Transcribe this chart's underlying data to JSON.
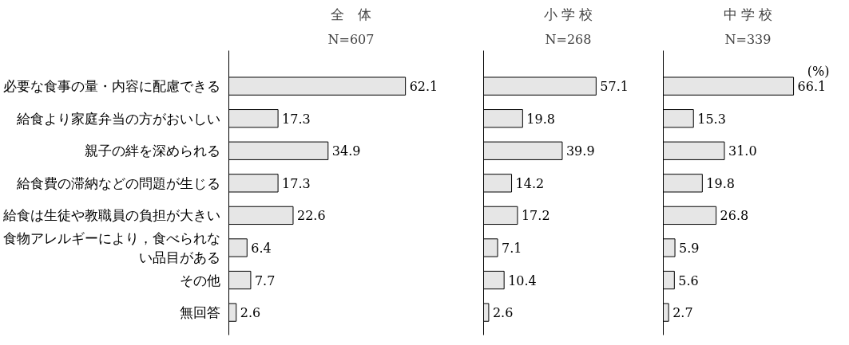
{
  "chart_data": [
    {
      "type": "bar",
      "orientation": "horizontal",
      "title": "全　体",
      "subtitle": "N=607",
      "categories": [
        "必要な食事の量・内容に配慮できる",
        "給食より家庭弁当の方がおいしい",
        "親子の絆を深められる",
        "給食費の滞納などの問題が生じる",
        "給食は生徒や教職員の負担が大きい",
        "食物アレルギーにより，食べられない品目がある",
        "その他",
        "無回答"
      ],
      "values": [
        62.1,
        17.3,
        34.9,
        17.3,
        22.6,
        6.4,
        7.7,
        2.6
      ],
      "color": "#e6e6e6",
      "data_labels": true,
      "tick_labels": "y"
    },
    {
      "type": "bar",
      "orientation": "horizontal",
      "title": "小 学 校",
      "subtitle": "N=268",
      "categories": [
        "必要な食事の量・内容に配慮できる",
        "給食より家庭弁当の方がおいしい",
        "親子の絆を深められる",
        "給食費の滞納などの問題が生じる",
        "給食は生徒や教職員の負担が大きい",
        "食物アレルギーにより，食べられない品目がある",
        "その他",
        "無回答"
      ],
      "values": [
        57.1,
        19.8,
        39.9,
        14.2,
        17.2,
        7.1,
        10.4,
        2.6
      ],
      "color": "#e6e6e6",
      "data_labels": true,
      "tick_labels": false
    },
    {
      "type": "bar",
      "orientation": "horizontal",
      "title": "中 学 校",
      "subtitle": "N=339",
      "categories": [
        "必要な食事の量・内容に配慮できる",
        "給食より家庭弁当の方がおいしい",
        "親子の絆を深められる",
        "給食費の滞納などの問題が生じる",
        "給食は生徒や教職員の負担が大きい",
        "食物アレルギーにより，食べられない品目がある",
        "その他",
        "無回答"
      ],
      "values": [
        66.1,
        15.3,
        31.0,
        19.8,
        26.8,
        5.9,
        5.6,
        2.7
      ],
      "value_labels": [
        "66.1",
        "15.3",
        "31.0",
        "19.8",
        "26.8",
        "5.9",
        "5.6",
        "2.7"
      ],
      "color": "#e6e6e6",
      "data_labels": true,
      "tick_labels": false,
      "annotations": [
        "(%)"
      ]
    }
  ]
}
